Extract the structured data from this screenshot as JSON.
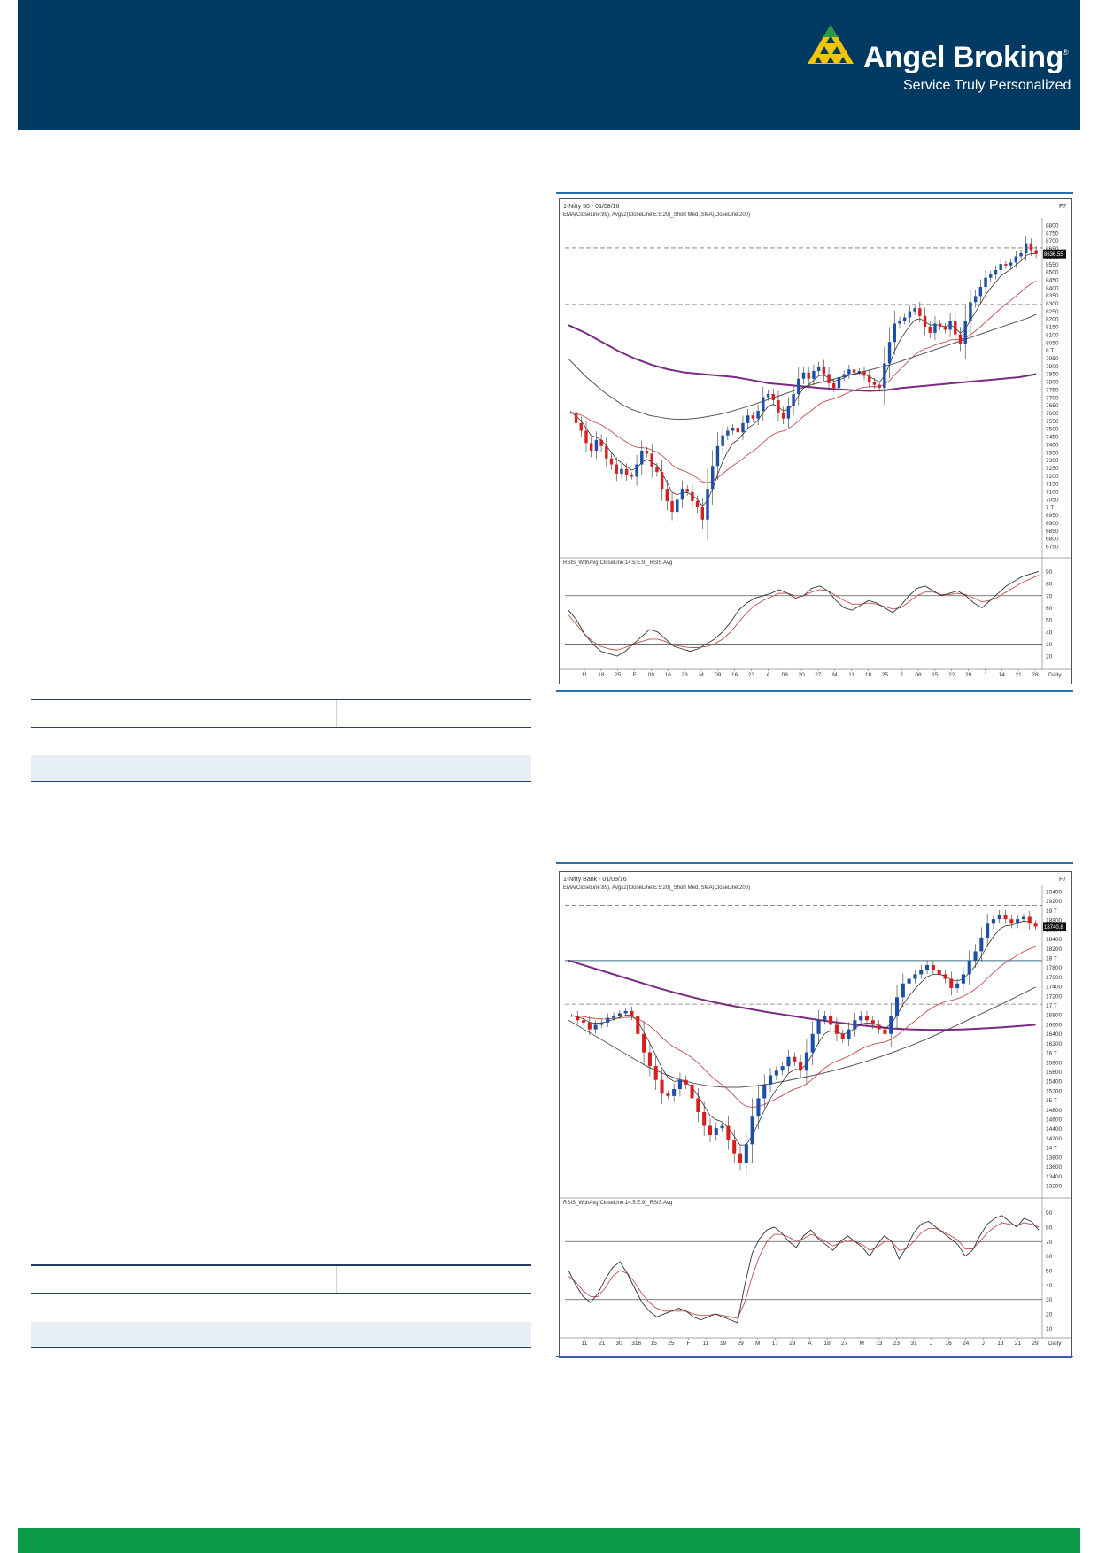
{
  "header": {
    "brand_name": "Angel Broking",
    "registered_mark": "®",
    "tagline": "Service Truly Personalized",
    "background_color": "#003a63",
    "logo_color": "#f2c500"
  },
  "footer": {
    "color": "#0a9a48"
  },
  "chart_data": [
    {
      "type": "candlestick",
      "title": "1-Nifty 50 - 01/08/16",
      "indicator_label": "EMA(CloseLine:89), Avgs2(CloseLine:E:5:20)_Short Med, SMA(CloseLine:200)",
      "corner_label": "F7",
      "last_value_label": "8636.55",
      "y_ticks": [
        "8800",
        "8750",
        "8700",
        "8650",
        "8600",
        "8550",
        "8500",
        "8450",
        "8400",
        "8350",
        "8300",
        "8250",
        "8200",
        "8150",
        "8100",
        "8050",
        "8 T",
        "7950",
        "7900",
        "7850",
        "7800",
        "7750",
        "7700",
        "7650",
        "7600",
        "7550",
        "7500",
        "7450",
        "7400",
        "7350",
        "7300",
        "7250",
        "7200",
        "7150",
        "7100",
        "7050",
        "7 T",
        "6950",
        "6900",
        "6850",
        "6800",
        "6750"
      ],
      "ylim": [
        6725,
        8825
      ],
      "x_ticks": [
        "11",
        "18",
        "25",
        "F",
        "09",
        "16",
        "23",
        "M",
        "09",
        "16",
        "23",
        "A",
        "08",
        "20",
        "27",
        "M",
        "11",
        "18",
        "25",
        "J",
        "08",
        "15",
        "22",
        "29",
        "J",
        "14",
        "21",
        "28"
      ],
      "x_suffix": "Daily",
      "close": [
        7600,
        7530,
        7480,
        7400,
        7350,
        7420,
        7380,
        7300,
        7260,
        7200,
        7230,
        7190,
        7180,
        7260,
        7350,
        7330,
        7240,
        7210,
        7100,
        7020,
        6950,
        7030,
        7100,
        7080,
        7020,
        6980,
        6900,
        7100,
        7250,
        7380,
        7450,
        7480,
        7500,
        7470,
        7530,
        7580,
        7560,
        7610,
        7700,
        7720,
        7680,
        7600,
        7560,
        7640,
        7720,
        7820,
        7860,
        7820,
        7870,
        7900,
        7850,
        7790,
        7760,
        7830,
        7850,
        7880,
        7860,
        7870,
        7840,
        7800,
        7780,
        7760,
        7920,
        8060,
        8180,
        8200,
        8220,
        8260,
        8280,
        8230,
        8160,
        8120,
        8180,
        8160,
        8140,
        8200,
        8110,
        8050,
        8200,
        8320,
        8360,
        8420,
        8480,
        8500,
        8530,
        8570,
        8560,
        8580,
        8620,
        8640,
        8700,
        8660,
        8636
      ],
      "ema89": [
        7950,
        7890,
        7830,
        7780,
        7730,
        7690,
        7650,
        7620,
        7600,
        7580,
        7570,
        7560,
        7555,
        7555,
        7560,
        7568,
        7578,
        7590,
        7605,
        7622,
        7640,
        7660,
        7680,
        7700,
        7720,
        7740,
        7760,
        7780,
        7795,
        7810,
        7825,
        7840,
        7855,
        7870,
        7885,
        7900,
        7915,
        7935,
        7955,
        7975,
        7995,
        8015,
        8035,
        8055,
        8075,
        8095,
        8115,
        8135,
        8155,
        8175,
        8195,
        8215,
        8240
      ],
      "sma200": [
        8170,
        8120,
        8060,
        8000,
        7950,
        7910,
        7880,
        7860,
        7850,
        7840,
        7830,
        7810,
        7790,
        7780,
        7770,
        7760,
        7752,
        7745,
        7740,
        7745,
        7760,
        7770,
        7780,
        7790,
        7800,
        7810,
        7820,
        7830,
        7850
      ],
      "support_resistance": [
        8675,
        8305
      ],
      "rsi": {
        "label": "RSIS_WithAvg(CloseLine:14:5:E:9)_RSIS Avg",
        "y_ticks": [
          "90",
          "80",
          "70",
          "60",
          "50",
          "40",
          "30",
          "20"
        ],
        "ylim": [
          12,
          94
        ],
        "levels": [
          70,
          30
        ],
        "values": [
          58,
          50,
          38,
          30,
          24,
          22,
          20,
          24,
          30,
          36,
          42,
          40,
          34,
          28,
          26,
          24,
          26,
          30,
          34,
          40,
          48,
          58,
          64,
          68,
          70,
          72,
          75,
          72,
          68,
          70,
          76,
          78,
          74,
          66,
          60,
          58,
          62,
          66,
          64,
          60,
          56,
          62,
          70,
          76,
          78,
          74,
          70,
          72,
          74,
          70,
          64,
          60,
          66,
          72,
          78,
          82,
          86,
          88,
          90
        ],
        "avg": [
          54,
          46,
          38,
          32,
          28,
          26,
          25,
          27,
          30,
          32,
          34,
          34,
          32,
          29,
          28,
          27,
          27,
          28,
          30,
          34,
          40,
          48,
          56,
          62,
          66,
          69,
          72,
          72,
          70,
          70,
          73,
          75,
          74,
          70,
          66,
          63,
          63,
          64,
          63,
          61,
          59,
          60,
          65,
          70,
          73,
          73,
          71,
          71,
          72,
          71,
          68,
          65,
          66,
          69,
          73,
          77,
          81,
          84,
          87
        ]
      }
    },
    {
      "type": "candlestick",
      "title": "1-Nifty Bank - 01/08/16",
      "indicator_label": "EMA(CloseLine:89), Avgs2(CloseLine:E:5:20)_Short Med, SMA(CloseLine:200)",
      "corner_label": "F7",
      "last_value_label": "18740.8",
      "y_ticks": [
        "19400",
        "19200",
        "19 T",
        "18800",
        "18600",
        "18400",
        "18200",
        "18 T",
        "17800",
        "17600",
        "17400",
        "17200",
        "17 T",
        "16800",
        "16600",
        "16400",
        "16200",
        "16 T",
        "15800",
        "15600",
        "15400",
        "15200",
        "15 T",
        "14800",
        "14600",
        "14400",
        "14200",
        "14 T",
        "13800",
        "13600",
        "13400",
        "13200"
      ],
      "ylim": [
        13100,
        19500
      ],
      "x_ticks": [
        "11",
        "21",
        "30",
        "316",
        "15",
        "25",
        "F",
        "11",
        "19",
        "29",
        "M",
        "17",
        "29",
        "A",
        "18",
        "27",
        "M",
        "13",
        "23",
        "31",
        "J",
        "16",
        "24",
        "J",
        "13",
        "21",
        "29"
      ],
      "x_suffix": "Daily",
      "close": [
        16800,
        16700,
        16650,
        16500,
        16600,
        16650,
        16750,
        16800,
        16850,
        16900,
        16800,
        16400,
        16000,
        15700,
        15400,
        15100,
        15050,
        15200,
        15400,
        15300,
        15000,
        14700,
        14400,
        14200,
        14350,
        14400,
        14100,
        13800,
        13600,
        14000,
        14600,
        15000,
        15300,
        15500,
        15600,
        15700,
        15900,
        15800,
        15600,
        16000,
        16400,
        16700,
        16800,
        16600,
        16400,
        16300,
        16500,
        16700,
        16800,
        16700,
        16600,
        16500,
        16400,
        16800,
        17200,
        17500,
        17600,
        17700,
        17800,
        17900,
        17800,
        17700,
        17600,
        17400,
        17500,
        17700,
        18000,
        18200,
        18500,
        18800,
        18900,
        19000,
        18900,
        18800,
        18900,
        18950,
        18800,
        18740
      ],
      "ema89": [
        16700,
        16500,
        16300,
        16100,
        15900,
        15700,
        15550,
        15420,
        15330,
        15270,
        15240,
        15240,
        15270,
        15320,
        15380,
        15450,
        15520,
        15600,
        15690,
        15790,
        15900,
        16020,
        16150,
        16290,
        16440,
        16600,
        16760,
        16920,
        17080,
        17250,
        17420
      ],
      "sma200": [
        18000,
        17880,
        17760,
        17640,
        17520,
        17400,
        17290,
        17190,
        17100,
        17020,
        16950,
        16880,
        16820,
        16760,
        16700,
        16650,
        16600,
        16560,
        16520,
        16500,
        16490,
        16490,
        16500,
        16520,
        16540,
        16570,
        16600
      ],
      "support_resistance": [
        19200,
        17050
      ],
      "horizontal_line": 18000,
      "rsi": {
        "label": "RSIS_WithAvg(CloseLine:14:5:E:9)_RSIS Avg",
        "y_ticks": [
          "90",
          "80",
          "70",
          "60",
          "50",
          "40",
          "30",
          "20",
          "10"
        ],
        "ylim": [
          6,
          94
        ],
        "levels": [
          70,
          30
        ],
        "values": [
          50,
          40,
          32,
          28,
          34,
          44,
          52,
          56,
          48,
          38,
          28,
          22,
          18,
          20,
          22,
          24,
          22,
          18,
          16,
          18,
          20,
          18,
          16,
          14,
          40,
          62,
          72,
          78,
          80,
          76,
          70,
          66,
          74,
          78,
          72,
          68,
          64,
          70,
          74,
          70,
          66,
          60,
          68,
          74,
          70,
          58,
          66,
          76,
          82,
          84,
          80,
          76,
          72,
          68,
          60,
          64,
          74,
          82,
          86,
          88,
          84,
          80,
          86,
          84,
          78
        ],
        "avg": [
          46,
          42,
          36,
          32,
          32,
          38,
          46,
          50,
          48,
          42,
          34,
          28,
          24,
          22,
          22,
          22,
          22,
          20,
          19,
          19,
          20,
          19,
          18,
          17,
          28,
          46,
          60,
          70,
          75,
          75,
          73,
          70,
          72,
          75,
          73,
          70,
          67,
          69,
          71,
          70,
          68,
          64,
          66,
          70,
          70,
          64,
          65,
          70,
          76,
          79,
          79,
          77,
          74,
          71,
          65,
          65,
          70,
          76,
          80,
          83,
          82,
          81,
          83,
          82,
          80
        ]
      }
    }
  ]
}
